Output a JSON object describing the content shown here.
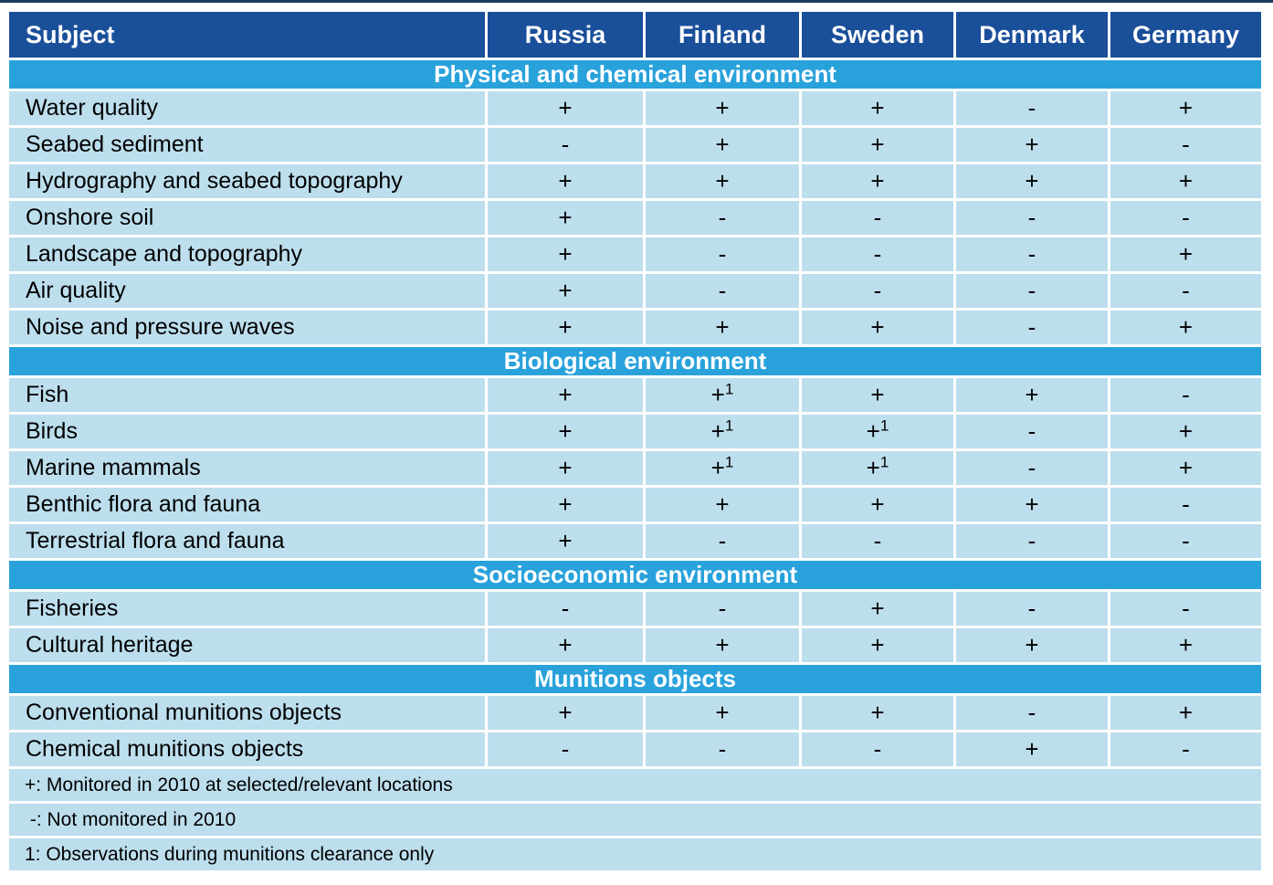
{
  "page": {
    "background": "#ffffff"
  },
  "colors": {
    "header_bg": "#1a4f9a",
    "header_text": "#ffffff",
    "section_bg": "#29a2db",
    "section_text": "#ffffff",
    "row_bg": "#bddeed",
    "row_text": "#000000",
    "top_line": "#1e3a5f"
  },
  "table": {
    "columns": [
      "Subject",
      "Russia",
      "Finland",
      "Sweden",
      "Denmark",
      "Germany"
    ],
    "sections": [
      {
        "title": "Physical and chemical environment",
        "rows": [
          {
            "label": "Water quality",
            "values": [
              "+",
              "+",
              "+",
              "-",
              "+"
            ]
          },
          {
            "label": "Seabed sediment",
            "values": [
              "-",
              "+",
              "+",
              "+",
              "-"
            ]
          },
          {
            "label": "Hydrography and seabed topography",
            "values": [
              "+",
              "+",
              "+",
              "+",
              "+"
            ]
          },
          {
            "label": "Onshore soil",
            "values": [
              "+",
              "-",
              "-",
              "-",
              "-"
            ]
          },
          {
            "label": "Landscape and topography",
            "values": [
              "+",
              "-",
              "-",
              "-",
              "+"
            ]
          },
          {
            "label": "Air quality",
            "values": [
              "+",
              "-",
              "-",
              "-",
              "-"
            ]
          },
          {
            "label": "Noise and pressure waves",
            "values": [
              "+",
              "+",
              "+",
              "-",
              "+"
            ]
          }
        ]
      },
      {
        "title": "Biological environment",
        "rows": [
          {
            "label": "Fish",
            "values": [
              "+",
              "+1",
              "+",
              "+",
              "-"
            ]
          },
          {
            "label": "Birds",
            "values": [
              "+",
              "+1",
              "+1",
              "-",
              "+"
            ]
          },
          {
            "label": "Marine mammals",
            "values": [
              "+",
              "+1",
              "+1",
              "-",
              "+"
            ]
          },
          {
            "label": "Benthic flora and fauna",
            "values": [
              "+",
              "+",
              "+",
              "+",
              "-"
            ]
          },
          {
            "label": "Terrestrial flora and fauna",
            "values": [
              "+",
              "-",
              "-",
              "-",
              "-"
            ]
          }
        ]
      },
      {
        "title": "Socioeconomic environment",
        "rows": [
          {
            "label": "Fisheries",
            "values": [
              "-",
              "-",
              "+",
              "-",
              "-"
            ]
          },
          {
            "label": "Cultural heritage",
            "values": [
              "+",
              "+",
              "+",
              "+",
              "+"
            ]
          }
        ]
      },
      {
        "title": "Munitions objects",
        "rows": [
          {
            "label": "Conventional munitions objects",
            "values": [
              "+",
              "+",
              "+",
              "-",
              "+"
            ]
          },
          {
            "label": "Chemical munitions objects",
            "values": [
              "-",
              "-",
              "-",
              "+",
              "-"
            ]
          }
        ]
      }
    ],
    "notes": [
      "+: Monitored in 2010 at selected/relevant locations",
      " -: Not monitored in 2010",
      "1: Observations during munitions clearance only"
    ]
  }
}
